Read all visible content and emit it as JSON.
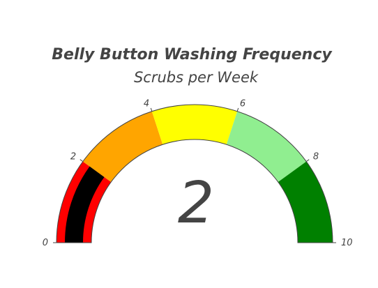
{
  "chart_data": {
    "type": "gauge",
    "title": "Belly Button Washing Frequency",
    "subtitle": "Scrubs per Week",
    "value": 2,
    "range": [
      0,
      10
    ],
    "ticks": [
      {
        "value": 0,
        "label": "0"
      },
      {
        "value": 2,
        "label": "2"
      },
      {
        "value": 4,
        "label": "4"
      },
      {
        "value": 6,
        "label": "6"
      },
      {
        "value": 8,
        "label": "8"
      },
      {
        "value": 10,
        "label": "10"
      }
    ],
    "steps": [
      {
        "range": [
          0,
          2
        ],
        "color": "#ff0000"
      },
      {
        "range": [
          2,
          4
        ],
        "color": "#ffa500"
      },
      {
        "range": [
          4,
          6
        ],
        "color": "#ffff00"
      },
      {
        "range": [
          6,
          8
        ],
        "color": "#90ee90"
      },
      {
        "range": [
          8,
          10
        ],
        "color": "#008000"
      }
    ],
    "bar_color": "#000000"
  }
}
